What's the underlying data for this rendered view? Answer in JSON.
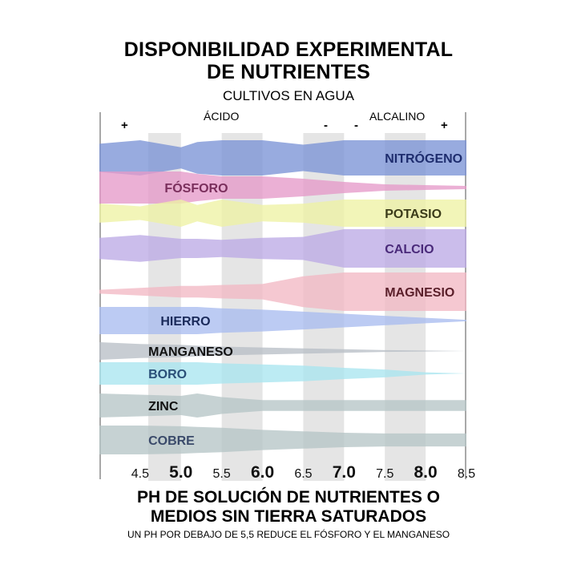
{
  "chart_data": {
    "type": "area",
    "title": "DISPONIBILIDAD EXPERIMENTAL DE NUTRIENTES",
    "title_lines": [
      "DISPONIBILIDAD EXPERIMENTAL",
      "DE NUTRIENTES"
    ],
    "subtitle": "CULTIVOS EN AGUA",
    "zone_labels": {
      "acid": "ÁCIDO",
      "alkaline": "ALCALINO"
    },
    "zone_signs": [
      "+",
      "-",
      "-",
      "+"
    ],
    "xlabel_lines": [
      "PH DE SOLUCIÓN DE NUTRIENTES O",
      "MEDIOS SIN TIERRA SATURADOS"
    ],
    "note": "UN PH POR DEBAJO DE 5,5 REDUCE EL FÓSFORO Y EL MANGANESO",
    "x_ticks": [
      {
        "label": "4.5",
        "bold": false
      },
      {
        "label": "5.0",
        "bold": true
      },
      {
        "label": "5.5",
        "bold": false
      },
      {
        "label": "6.0",
        "bold": true
      },
      {
        "label": "6.5",
        "bold": false
      },
      {
        "label": "7.0",
        "bold": true
      },
      {
        "label": "7.5",
        "bold": false
      },
      {
        "label": "8.0",
        "bold": true
      },
      {
        "label": "8.5",
        "bold": false
      }
    ],
    "xlim": [
      4.0,
      8.5
    ],
    "shaded_bands": [
      [
        4.6,
        5.0
      ],
      [
        5.5,
        6.0
      ],
      [
        6.5,
        7.0
      ],
      [
        7.5,
        8.0
      ]
    ],
    "x": [
      4.0,
      4.5,
      5.0,
      5.2,
      5.5,
      6.0,
      6.5,
      7.0,
      7.5,
      8.0,
      8.5
    ],
    "series": [
      {
        "name": "NITRÓGENO",
        "color": "#7b93d6",
        "label_color": "#1e2d6e",
        "label_x": 7.5,
        "width": [
          0.8,
          1.0,
          0.6,
          0.9,
          1.0,
          1.0,
          0.75,
          1.0,
          1.0,
          1.0,
          1.0
        ]
      },
      {
        "name": "FÓSFORO",
        "color": "#e59ac9",
        "label_color": "#7a2f5c",
        "label_x": 4.8,
        "width": [
          1.0,
          1.0,
          1.0,
          0.85,
          0.7,
          0.7,
          0.55,
          0.35,
          0.2,
          0.15,
          0.1
        ]
      },
      {
        "name": "POTASIO",
        "color": "#eef2a4",
        "label_color": "#3b3b1a",
        "label_x": 7.5,
        "width": [
          0.7,
          0.5,
          1.0,
          0.6,
          1.0,
          0.6,
          0.7,
          1.0,
          1.0,
          1.0,
          1.0
        ]
      },
      {
        "name": "CALCIO",
        "color": "#bcaae6",
        "label_color": "#4a2a7a",
        "label_x": 7.5,
        "width": [
          0.55,
          0.7,
          0.5,
          0.5,
          0.45,
          0.55,
          0.6,
          1.0,
          1.0,
          1.0,
          1.0
        ]
      },
      {
        "name": "MAGNESIO",
        "color": "#f2b8c4",
        "label_color": "#5a1f2a",
        "label_x": 7.5,
        "width": [
          0.1,
          0.2,
          0.3,
          0.3,
          0.35,
          0.4,
          0.8,
          1.0,
          1.0,
          1.0,
          1.0
        ]
      },
      {
        "name": "HIERRO",
        "color": "#a9bdf0",
        "label_color": "#1a2a5a",
        "label_x": 4.75,
        "width": [
          1.0,
          1.0,
          1.0,
          1.0,
          0.9,
          0.8,
          0.65,
          0.5,
          0.35,
          0.2,
          0.05
        ]
      },
      {
        "name": "MANGANESO",
        "color": "#b8bfc6",
        "label_color": "#111111",
        "label_x": 4.6,
        "width": [
          1.0,
          0.8,
          0.7,
          0.6,
          0.5,
          0.4,
          0.3,
          0.2,
          0.1,
          0.05,
          0.0
        ]
      },
      {
        "name": "BORO",
        "color": "#a9e6ef",
        "label_color": "#2a4f78",
        "label_x": 4.6,
        "width": [
          1.0,
          1.0,
          1.0,
          1.0,
          0.9,
          0.8,
          0.7,
          0.5,
          0.35,
          0.1,
          0.0
        ]
      },
      {
        "name": "ZINC",
        "color": "#b6c5c7",
        "label_color": "#111111",
        "label_x": 4.6,
        "width": [
          1.0,
          0.9,
          0.8,
          1.0,
          0.7,
          0.45,
          0.45,
          0.45,
          0.45,
          0.45,
          0.45
        ]
      },
      {
        "name": "COBRE",
        "color": "#b6c5c7",
        "label_color": "#3a4a6a",
        "label_x": 4.6,
        "width": [
          1.0,
          1.0,
          0.95,
          0.9,
          0.85,
          0.7,
          0.6,
          0.5,
          0.45,
          0.45,
          0.45
        ]
      }
    ]
  }
}
